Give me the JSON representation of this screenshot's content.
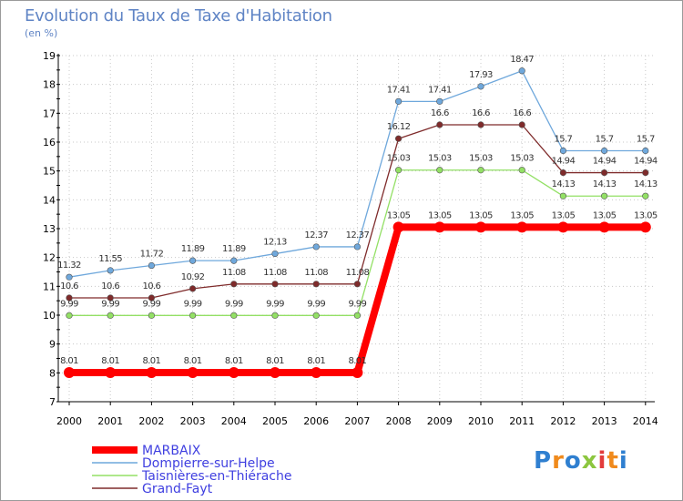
{
  "chart_data": {
    "type": "line",
    "title": "Evolution du Taux de Taxe d'Habitation",
    "subtitle": "(en %)",
    "x": [
      "2000",
      "2001",
      "2002",
      "2003",
      "2004",
      "2005",
      "2006",
      "2007",
      "2008",
      "2009",
      "2010",
      "2011",
      "2012",
      "2013",
      "2014"
    ],
    "ylim": [
      7,
      19
    ],
    "yticks": [
      7,
      8,
      9,
      10,
      11,
      12,
      13,
      14,
      15,
      16,
      17,
      18,
      19
    ],
    "grid": true,
    "legend_position": "bottom-left",
    "series": [
      {
        "name": "MARBAIX",
        "color": "#ff0000",
        "values": [
          8.01,
          8.01,
          8.01,
          8.01,
          8.01,
          8.01,
          8.01,
          8.01,
          13.05,
          13.05,
          13.05,
          13.05,
          13.05,
          13.05,
          13.05
        ],
        "labels": [
          "8.01",
          "8.01",
          "8.01",
          "8.01",
          "8.01",
          "8.01",
          "8.01",
          "8.01",
          "13.05",
          "13.05",
          "13.05",
          "13.05",
          "13.05",
          "13.05",
          "13.05"
        ]
      },
      {
        "name": "Dompierre-sur-Helpe",
        "color": "#6fa8dc",
        "values": [
          11.32,
          11.55,
          11.72,
          11.89,
          11.89,
          12.13,
          12.37,
          12.37,
          17.41,
          17.41,
          17.93,
          18.47,
          15.7,
          15.7,
          15.7
        ],
        "labels": [
          "11.32",
          "11.55",
          "11.72",
          "11.89",
          "11.89",
          "12.13",
          "12.37",
          "12.37",
          "17.41",
          "17.41",
          "17.93",
          "18.47",
          "15.7",
          "15.7",
          "15.7"
        ]
      },
      {
        "name": "Taisnières-en-Thiérache",
        "color": "#93e065",
        "values": [
          9.99,
          9.99,
          9.99,
          9.99,
          9.99,
          9.99,
          9.99,
          9.99,
          15.03,
          15.03,
          15.03,
          15.03,
          14.13,
          14.13,
          14.13
        ],
        "labels": [
          "9.99",
          "9.99",
          "9.99",
          "9.99",
          "9.99",
          "9.99",
          "9.99",
          "9.99",
          "15.03",
          "15.03",
          "15.03",
          "15.03",
          "14.13",
          "14.13",
          "14.13"
        ]
      },
      {
        "name": "Grand-Fayt",
        "color": "#7f2b2b",
        "values": [
          10.6,
          10.6,
          10.6,
          10.92,
          11.08,
          11.08,
          11.08,
          11.08,
          16.12,
          16.6,
          16.6,
          16.6,
          14.94,
          14.94,
          14.94
        ],
        "labels": [
          "10.6",
          "10.6",
          "10.6",
          "10.92",
          "11.08",
          "11.08",
          "11.08",
          "11.08",
          "16.12",
          "16.6",
          "16.6",
          "16.6",
          "14.94",
          "14.94",
          "14.94"
        ]
      }
    ]
  },
  "logo": {
    "letters": [
      "P",
      "r",
      "o",
      "x",
      "i",
      "t",
      "i"
    ]
  }
}
